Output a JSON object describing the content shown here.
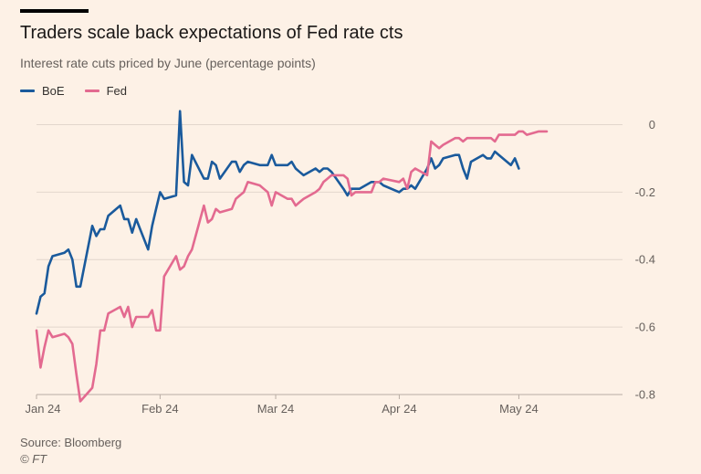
{
  "header": {
    "title": "Traders scale back expectations of Fed rate cts",
    "subtitle": "Interest rate cuts priced by June (percentage points)"
  },
  "footer": {
    "source": "Source: Bloomberg",
    "copyright": "© FT"
  },
  "colors": {
    "background": "#fdf1e6",
    "boe": "#1a5a9c",
    "fed": "#e36a90",
    "grid": "#e2d6cc",
    "axis_text": "#66605c"
  },
  "chart_data": {
    "type": "line",
    "title": "Traders scale back expectations of Fed rate cts",
    "subtitle": "Interest rate cuts priced by June (percentage points)",
    "xlabel": "",
    "ylabel": "",
    "x_range": [
      "2024-01-01",
      "2024-05-27"
    ],
    "ylim": [
      -0.8,
      0.05
    ],
    "y_ticks": [
      0,
      -0.2,
      -0.4,
      -0.6,
      -0.8
    ],
    "y_tick_labels": [
      "0",
      "-0.2",
      "-0.4",
      "-0.6",
      "-0.8"
    ],
    "x_ticks": [
      "2024-01-01",
      "2024-02-01",
      "2024-03-01",
      "2024-04-01",
      "2024-05-01"
    ],
    "x_tick_labels": [
      "Jan 24",
      "Feb 24",
      "Mar 24",
      "Apr 24",
      "May 24"
    ],
    "grid": true,
    "y_axis_side": "right",
    "legend_position": "top-left",
    "series": [
      {
        "name": "BoE",
        "color": "#1a5a9c",
        "points": [
          [
            "2024-01-01",
            -0.56
          ],
          [
            "2024-01-02",
            -0.51
          ],
          [
            "2024-01-03",
            -0.5
          ],
          [
            "2024-01-04",
            -0.42
          ],
          [
            "2024-01-05",
            -0.39
          ],
          [
            "2024-01-08",
            -0.38
          ],
          [
            "2024-01-09",
            -0.37
          ],
          [
            "2024-01-10",
            -0.4
          ],
          [
            "2024-01-11",
            -0.48
          ],
          [
            "2024-01-12",
            -0.48
          ],
          [
            "2024-01-15",
            -0.3
          ],
          [
            "2024-01-16",
            -0.33
          ],
          [
            "2024-01-17",
            -0.31
          ],
          [
            "2024-01-18",
            -0.31
          ],
          [
            "2024-01-19",
            -0.27
          ],
          [
            "2024-01-22",
            -0.24
          ],
          [
            "2024-01-23",
            -0.28
          ],
          [
            "2024-01-24",
            -0.28
          ],
          [
            "2024-01-25",
            -0.32
          ],
          [
            "2024-01-26",
            -0.28
          ],
          [
            "2024-01-29",
            -0.37
          ],
          [
            "2024-01-30",
            -0.3
          ],
          [
            "2024-01-31",
            -0.25
          ],
          [
            "2024-02-01",
            -0.2
          ],
          [
            "2024-02-02",
            -0.22
          ],
          [
            "2024-02-05",
            -0.21
          ],
          [
            "2024-02-06",
            0.04
          ],
          [
            "2024-02-07",
            -0.17
          ],
          [
            "2024-02-08",
            -0.18
          ],
          [
            "2024-02-09",
            -0.09
          ],
          [
            "2024-02-12",
            -0.16
          ],
          [
            "2024-02-13",
            -0.16
          ],
          [
            "2024-02-14",
            -0.11
          ],
          [
            "2024-02-15",
            -0.12
          ],
          [
            "2024-02-16",
            -0.16
          ],
          [
            "2024-02-19",
            -0.11
          ],
          [
            "2024-02-20",
            -0.11
          ],
          [
            "2024-02-21",
            -0.14
          ],
          [
            "2024-02-22",
            -0.12
          ],
          [
            "2024-02-23",
            -0.11
          ],
          [
            "2024-02-26",
            -0.12
          ],
          [
            "2024-02-27",
            -0.12
          ],
          [
            "2024-02-28",
            -0.12
          ],
          [
            "2024-02-29",
            -0.09
          ],
          [
            "2024-03-01",
            -0.12
          ],
          [
            "2024-03-04",
            -0.12
          ],
          [
            "2024-03-05",
            -0.11
          ],
          [
            "2024-03-06",
            -0.13
          ],
          [
            "2024-03-07",
            -0.14
          ],
          [
            "2024-03-08",
            -0.15
          ],
          [
            "2024-03-11",
            -0.13
          ],
          [
            "2024-03-12",
            -0.14
          ],
          [
            "2024-03-13",
            -0.13
          ],
          [
            "2024-03-14",
            -0.13
          ],
          [
            "2024-03-15",
            -0.14
          ],
          [
            "2024-03-18",
            -0.19
          ],
          [
            "2024-03-19",
            -0.21
          ],
          [
            "2024-03-20",
            -0.19
          ],
          [
            "2024-03-21",
            -0.19
          ],
          [
            "2024-03-22",
            -0.19
          ],
          [
            "2024-03-25",
            -0.17
          ],
          [
            "2024-03-26",
            -0.17
          ],
          [
            "2024-03-27",
            -0.17
          ],
          [
            "2024-03-28",
            -0.18
          ],
          [
            "2024-04-01",
            -0.2
          ],
          [
            "2024-04-02",
            -0.19
          ],
          [
            "2024-04-03",
            -0.19
          ],
          [
            "2024-04-04",
            -0.18
          ],
          [
            "2024-04-05",
            -0.19
          ],
          [
            "2024-04-08",
            -0.13
          ],
          [
            "2024-04-09",
            -0.1
          ],
          [
            "2024-04-10",
            -0.13
          ],
          [
            "2024-04-11",
            -0.12
          ],
          [
            "2024-04-12",
            -0.1
          ],
          [
            "2024-04-15",
            -0.09
          ],
          [
            "2024-04-16",
            -0.09
          ],
          [
            "2024-04-17",
            -0.13
          ],
          [
            "2024-04-18",
            -0.16
          ],
          [
            "2024-04-19",
            -0.11
          ],
          [
            "2024-04-22",
            -0.09
          ],
          [
            "2024-04-23",
            -0.1
          ],
          [
            "2024-04-24",
            -0.1
          ],
          [
            "2024-04-25",
            -0.08
          ],
          [
            "2024-04-26",
            -0.09
          ],
          [
            "2024-04-29",
            -0.12
          ],
          [
            "2024-04-30",
            -0.1
          ],
          [
            "2024-05-01",
            -0.13
          ]
        ]
      },
      {
        "name": "Fed",
        "color": "#e36a90",
        "points": [
          [
            "2024-01-01",
            -0.61
          ],
          [
            "2024-01-02",
            -0.72
          ],
          [
            "2024-01-03",
            -0.66
          ],
          [
            "2024-01-04",
            -0.61
          ],
          [
            "2024-01-05",
            -0.63
          ],
          [
            "2024-01-08",
            -0.62
          ],
          [
            "2024-01-09",
            -0.63
          ],
          [
            "2024-01-10",
            -0.65
          ],
          [
            "2024-01-11",
            -0.74
          ],
          [
            "2024-01-12",
            -0.82
          ],
          [
            "2024-01-15",
            -0.78
          ],
          [
            "2024-01-16",
            -0.71
          ],
          [
            "2024-01-17",
            -0.61
          ],
          [
            "2024-01-18",
            -0.61
          ],
          [
            "2024-01-19",
            -0.56
          ],
          [
            "2024-01-22",
            -0.54
          ],
          [
            "2024-01-23",
            -0.57
          ],
          [
            "2024-01-24",
            -0.54
          ],
          [
            "2024-01-25",
            -0.6
          ],
          [
            "2024-01-26",
            -0.57
          ],
          [
            "2024-01-29",
            -0.57
          ],
          [
            "2024-01-30",
            -0.55
          ],
          [
            "2024-01-31",
            -0.61
          ],
          [
            "2024-02-01",
            -0.61
          ],
          [
            "2024-02-02",
            -0.45
          ],
          [
            "2024-02-05",
            -0.39
          ],
          [
            "2024-02-06",
            -0.43
          ],
          [
            "2024-02-07",
            -0.42
          ],
          [
            "2024-02-08",
            -0.39
          ],
          [
            "2024-02-09",
            -0.37
          ],
          [
            "2024-02-12",
            -0.24
          ],
          [
            "2024-02-13",
            -0.29
          ],
          [
            "2024-02-14",
            -0.28
          ],
          [
            "2024-02-15",
            -0.25
          ],
          [
            "2024-02-16",
            -0.26
          ],
          [
            "2024-02-19",
            -0.25
          ],
          [
            "2024-02-20",
            -0.22
          ],
          [
            "2024-02-21",
            -0.21
          ],
          [
            "2024-02-22",
            -0.2
          ],
          [
            "2024-02-23",
            -0.17
          ],
          [
            "2024-02-26",
            -0.18
          ],
          [
            "2024-02-27",
            -0.19
          ],
          [
            "2024-02-28",
            -0.2
          ],
          [
            "2024-02-29",
            -0.24
          ],
          [
            "2024-03-01",
            -0.2
          ],
          [
            "2024-03-04",
            -0.22
          ],
          [
            "2024-03-05",
            -0.22
          ],
          [
            "2024-03-06",
            -0.24
          ],
          [
            "2024-03-07",
            -0.23
          ],
          [
            "2024-03-08",
            -0.22
          ],
          [
            "2024-03-11",
            -0.2
          ],
          [
            "2024-03-12",
            -0.19
          ],
          [
            "2024-03-13",
            -0.17
          ],
          [
            "2024-03-14",
            -0.16
          ],
          [
            "2024-03-15",
            -0.15
          ],
          [
            "2024-03-18",
            -0.15
          ],
          [
            "2024-03-19",
            -0.16
          ],
          [
            "2024-03-20",
            -0.21
          ],
          [
            "2024-03-21",
            -0.2
          ],
          [
            "2024-03-22",
            -0.2
          ],
          [
            "2024-03-25",
            -0.2
          ],
          [
            "2024-03-26",
            -0.17
          ],
          [
            "2024-03-27",
            -0.17
          ],
          [
            "2024-03-28",
            -0.16
          ],
          [
            "2024-04-01",
            -0.17
          ],
          [
            "2024-04-02",
            -0.16
          ],
          [
            "2024-04-03",
            -0.19
          ],
          [
            "2024-04-04",
            -0.14
          ],
          [
            "2024-04-05",
            -0.13
          ],
          [
            "2024-04-08",
            -0.15
          ],
          [
            "2024-04-09",
            -0.05
          ],
          [
            "2024-04-10",
            -0.06
          ],
          [
            "2024-04-11",
            -0.07
          ],
          [
            "2024-04-12",
            -0.06
          ],
          [
            "2024-04-15",
            -0.04
          ],
          [
            "2024-04-16",
            -0.04
          ],
          [
            "2024-04-17",
            -0.05
          ],
          [
            "2024-04-18",
            -0.04
          ],
          [
            "2024-04-19",
            -0.04
          ],
          [
            "2024-04-22",
            -0.04
          ],
          [
            "2024-04-23",
            -0.04
          ],
          [
            "2024-04-24",
            -0.04
          ],
          [
            "2024-04-25",
            -0.05
          ],
          [
            "2024-04-26",
            -0.03
          ],
          [
            "2024-04-29",
            -0.03
          ],
          [
            "2024-04-30",
            -0.03
          ],
          [
            "2024-05-01",
            -0.02
          ],
          [
            "2024-05-02",
            -0.02
          ],
          [
            "2024-05-03",
            -0.03
          ],
          [
            "2024-05-06",
            -0.02
          ],
          [
            "2024-05-07",
            -0.02
          ],
          [
            "2024-05-08",
            -0.02
          ]
        ]
      }
    ]
  }
}
